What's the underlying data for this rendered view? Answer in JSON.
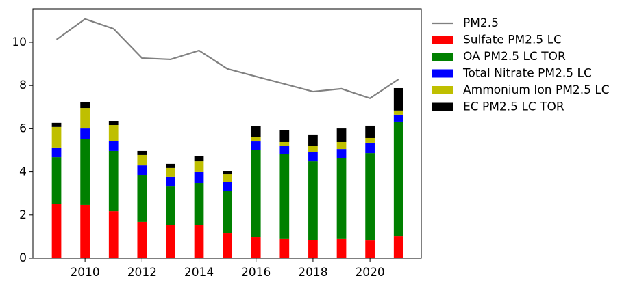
{
  "chart_data": {
    "type": "bar",
    "stacked": true,
    "x": [
      2009,
      2010,
      2011,
      2012,
      2013,
      2014,
      2015,
      2016,
      2017,
      2018,
      2019,
      2020,
      2021
    ],
    "series": [
      {
        "name": "PM2.5",
        "type": "line",
        "color": "#808080",
        "values": [
          10.13,
          11.08,
          10.63,
          9.27,
          9.21,
          9.62,
          8.77,
          8.42,
          8.07,
          7.72,
          7.85,
          7.41,
          8.29
        ]
      },
      {
        "name": "Sulfate PM2.5 LC",
        "type": "bar",
        "color": "#ff0000",
        "values": [
          2.5,
          2.47,
          2.18,
          1.68,
          1.52,
          1.55,
          1.17,
          0.98,
          0.89,
          0.85,
          0.89,
          0.82,
          1.01
        ]
      },
      {
        "name": "OA PM2.5 LC TOR",
        "type": "bar",
        "color": "#008000",
        "values": [
          2.18,
          3.04,
          2.79,
          2.18,
          1.8,
          1.93,
          1.96,
          4.05,
          3.92,
          3.64,
          3.76,
          4.05,
          5.32
        ]
      },
      {
        "name": "Total Nitrate PM2.5 LC",
        "type": "bar",
        "color": "#0000ff",
        "values": [
          0.45,
          0.5,
          0.47,
          0.44,
          0.45,
          0.51,
          0.41,
          0.38,
          0.38,
          0.42,
          0.41,
          0.48,
          0.32
        ]
      },
      {
        "name": "Ammonium Ion PM2.5 LC",
        "type": "bar",
        "color": "#bfbf00",
        "values": [
          0.95,
          0.95,
          0.73,
          0.48,
          0.41,
          0.5,
          0.35,
          0.22,
          0.19,
          0.28,
          0.32,
          0.22,
          0.19
        ]
      },
      {
        "name": "EC PM2.5 LC TOR",
        "type": "bar",
        "color": "#000000",
        "values": [
          0.19,
          0.26,
          0.19,
          0.19,
          0.19,
          0.23,
          0.16,
          0.48,
          0.54,
          0.54,
          0.63,
          0.57,
          1.04
        ]
      }
    ],
    "xlim": [
      2008.17,
      2021.8
    ],
    "xticks": [
      2010,
      2012,
      2014,
      2016,
      2018,
      2020
    ],
    "ylim": [
      0,
      11.55
    ],
    "yticks": [
      0,
      2,
      4,
      6,
      8,
      10
    ],
    "legend": "outside-upper-right"
  }
}
